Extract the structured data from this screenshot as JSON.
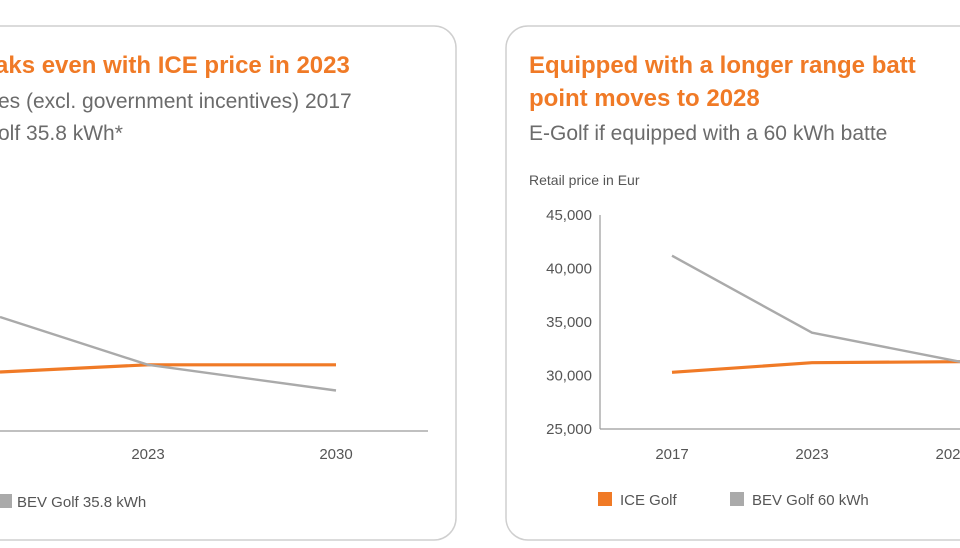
{
  "chart_data": [
    {
      "type": "line",
      "title": "aks even with ICE price in 2023",
      "subtitle_lines": [
        "es (excl. government incentives) 2017",
        "olf 35.8 kWh*"
      ],
      "ylabel": "",
      "categories": [
        "2023",
        "2030"
      ],
      "series": [
        {
          "name": "",
          "color": "#f07a26",
          "values": [
            31000,
            31000
          ]
        },
        {
          "name": "BEV Golf 35.8 kWh",
          "color": "#aaaaaa",
          "values": [
            31000,
            28600
          ]
        }
      ],
      "ylim": [
        25000,
        45000
      ],
      "grid": false,
      "legend": "bottom"
    },
    {
      "type": "line",
      "title_lines": [
        "Equipped with a longer range batt",
        "point moves to 2028"
      ],
      "subtitle": "E-Golf if equipped with a 60 kWh batte",
      "ylabel": "Retail price in Eur",
      "categories": [
        "2017",
        "2023",
        "202"
      ],
      "yticks": [
        "45,000",
        "40,000",
        "35,000",
        "30,000",
        "25,000"
      ],
      "ytick_values": [
        45000,
        40000,
        35000,
        30000,
        25000
      ],
      "series": [
        {
          "name": "ICE Golf",
          "color": "#f07a26",
          "values": [
            30300,
            31200,
            31300
          ]
        },
        {
          "name": "BEV Golf 60 kWh",
          "color": "#aaaaaa",
          "values": [
            41200,
            34000,
            31100
          ]
        }
      ],
      "ylim": [
        25000,
        45000
      ],
      "grid": false,
      "legend": "bottom"
    }
  ]
}
